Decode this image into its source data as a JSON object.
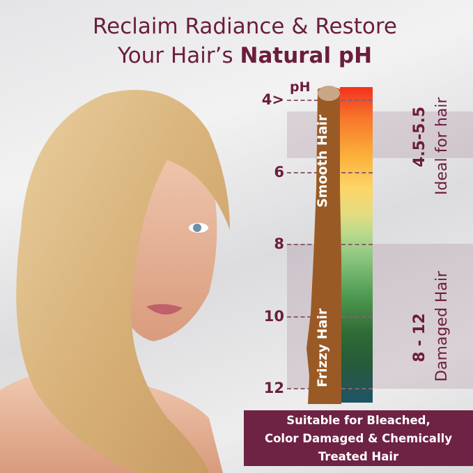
{
  "headline": {
    "line1": "Reclaim Radiance & Restore",
    "line2_prefix": "Your Hair’s ",
    "line2_bold": "Natural pH"
  },
  "scale": {
    "unit_label": "pH",
    "ticks": [
      {
        "label": "4>",
        "value": 4
      },
      {
        "label": "6",
        "value": 6
      },
      {
        "label": "8",
        "value": 8
      },
      {
        "label": "10",
        "value": 10
      },
      {
        "label": "12",
        "value": 12
      }
    ],
    "strand_labels": {
      "top": "Smooth Hair",
      "bottom": "Frizzy Hair"
    },
    "ranges": [
      {
        "range": "4.5-5.5",
        "desc": "Ideal for hair",
        "from": 4.5,
        "to": 5.5
      },
      {
        "range": "8 - 12",
        "desc": "Damaged Hair",
        "from": 8,
        "to": 12
      }
    ]
  },
  "banner": {
    "line1": "Suitable for Bleached,",
    "line2": "Color Damaged & Chemically",
    "line3": "Treated Hair"
  },
  "colors": {
    "accent": "#6b1d3c",
    "banner": "#6e2244",
    "hair_strand": "#9a5a25"
  }
}
